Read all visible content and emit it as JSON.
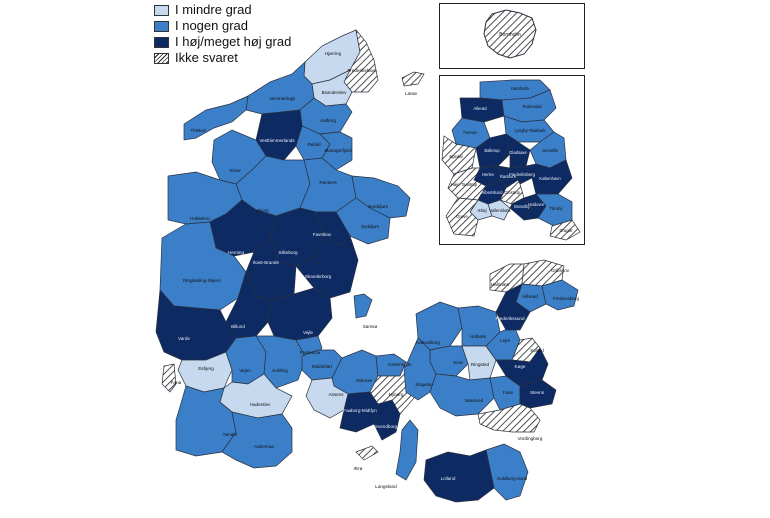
{
  "colors": {
    "light": "#c6d9ef",
    "medium": "#3b7fc8",
    "dark": "#0d2a63",
    "border": "#2a3140",
    "hatch": "#222222",
    "sea": "#ffffff"
  },
  "legend": {
    "items": [
      {
        "label": "I mindre grad",
        "category": "light"
      },
      {
        "label": "I nogen grad",
        "category": "medium"
      },
      {
        "label": "I høj/meget høj grad",
        "category": "dark"
      },
      {
        "label": "Ikke svaret",
        "category": "hatch"
      }
    ]
  },
  "regions": {
    "hjorring": {
      "label": "Hjørring",
      "category": "light"
    },
    "frederikshavn": {
      "label": "Frederikshavn",
      "category": "hatch"
    },
    "laeso": {
      "label": "Læsø",
      "category": "hatch"
    },
    "bronderslev": {
      "label": "Brønderslev",
      "category": "light"
    },
    "jammerbugt": {
      "label": "Jammerbugt",
      "category": "medium"
    },
    "aalborg": {
      "label": "Aalborg",
      "category": "medium"
    },
    "thisted": {
      "label": "Thisted",
      "category": "medium"
    },
    "vesthimmerland": {
      "label": "Vesthimmerlands",
      "category": "dark"
    },
    "rebild": {
      "label": "Rebild",
      "category": "medium"
    },
    "mariagerfjord": {
      "label": "Mariagerfjord",
      "category": "medium"
    },
    "skive": {
      "label": "Skive",
      "category": "medium"
    },
    "viborg": {
      "label": "Viborg",
      "category": "medium"
    },
    "randers": {
      "label": "Randers",
      "category": "medium"
    },
    "norddjurs": {
      "label": "Norddjurs",
      "category": "medium"
    },
    "syddjurs": {
      "label": "Syddjurs",
      "category": "medium"
    },
    "holstebro": {
      "label": "Holstebro",
      "category": "medium"
    },
    "herning": {
      "label": "Herning",
      "category": "dark"
    },
    "silkeborg": {
      "label": "Silkeborg",
      "category": "dark"
    },
    "favrskov": {
      "label": "Favrskov",
      "category": "dark"
    },
    "ikast": {
      "label": "Ikast-Brande",
      "category": "dark"
    },
    "skanderborg": {
      "label": "Skanderborg",
      "category": "dark"
    },
    "ringkobing": {
      "label": "Ringkøbing-Skjern",
      "category": "medium"
    },
    "billund": {
      "label": "Billund",
      "category": "dark"
    },
    "vejle": {
      "label": "Vejle",
      "category": "dark"
    },
    "varde": {
      "label": "Varde",
      "category": "dark"
    },
    "esbjerg": {
      "label": "Esbjerg",
      "category": "light"
    },
    "fano": {
      "label": "Fanø",
      "category": "hatch"
    },
    "vejen": {
      "label": "Vejen",
      "category": "medium"
    },
    "kolding": {
      "label": "Kolding",
      "category": "medium"
    },
    "fredericia": {
      "label": "Fredericia",
      "category": "medium"
    },
    "haderslev": {
      "label": "Haderslev",
      "category": "light"
    },
    "tonder": {
      "label": "Tønder",
      "category": "medium"
    },
    "aabenraa": {
      "label": "Aabenraa",
      "category": "medium"
    },
    "samso": {
      "label": "Samsø",
      "category": "medium"
    },
    "middelfart": {
      "label": "Middelfart",
      "category": "medium"
    },
    "odense": {
      "label": "Odense",
      "category": "medium"
    },
    "assens": {
      "label": "Assens",
      "category": "light"
    },
    "kerteminde": {
      "label": "Kerteminde",
      "category": "medium"
    },
    "faaborg": {
      "label": "Faaborg-Midtfyn",
      "category": "dark"
    },
    "svendborg": {
      "label": "Svendborg",
      "category": "dark"
    },
    "nyborg": {
      "label": "Nyborg",
      "category": "hatch"
    },
    "aero": {
      "label": "Ærø",
      "category": "hatch"
    },
    "langeland": {
      "label": "Langeland",
      "category": "medium"
    },
    "kalundborg": {
      "label": "Kalundborg",
      "category": "medium"
    },
    "holbaek": {
      "label": "Holbæk",
      "category": "medium"
    },
    "sorø": {
      "label": "Sorø",
      "category": "medium"
    },
    "ringsted": {
      "label": "Ringsted",
      "category": "light"
    },
    "slagelse": {
      "label": "Slagelse",
      "category": "medium"
    },
    "naestved": {
      "label": "Næstved",
      "category": "medium"
    },
    "faxe": {
      "label": "Faxe",
      "category": "medium"
    },
    "lejre": {
      "label": "Lejre",
      "category": "medium"
    },
    "solrod": {
      "label": "Solrød",
      "category": "hatch"
    },
    "koge": {
      "label": "Køge",
      "category": "dark"
    },
    "stevns": {
      "label": "Stevns",
      "category": "dark"
    },
    "vordingborg": {
      "label": "Vordingborg",
      "category": "hatch"
    },
    "guldborgsund": {
      "label": "Guldborg-sund",
      "category": "medium"
    },
    "lolland": {
      "label": "Lolland",
      "category": "dark"
    },
    "halsnaes": {
      "label": "Halsnæs",
      "category": "hatch"
    },
    "gribskov": {
      "label": "Gribskov",
      "category": "hatch"
    },
    "hillerod": {
      "label": "Hillerød",
      "category": "medium"
    },
    "fredensborg": {
      "label": "Fredensborg",
      "category": "medium"
    },
    "frederikssund": {
      "label": "Frederikssund",
      "category": "dark"
    },
    "bornholm": {
      "label": "Bornholm",
      "category": "hatch"
    }
  },
  "inset_capital": {
    "regions": [
      {
        "label": "Hørsholm",
        "category": "medium"
      },
      {
        "label": "Allerød",
        "category": "dark"
      },
      {
        "label": "Rudersdal",
        "category": "medium"
      },
      {
        "label": "Furesø",
        "category": "medium"
      },
      {
        "label": "Lyngby-Taarbæk",
        "category": "medium"
      },
      {
        "label": "Egedal",
        "category": "hatch"
      },
      {
        "label": "Ballerup",
        "category": "dark"
      },
      {
        "label": "Gladsaxe",
        "category": "dark"
      },
      {
        "label": "Gentofte",
        "category": "medium"
      },
      {
        "label": "Herlev",
        "category": "dark"
      },
      {
        "label": "Rødovre",
        "category": "dark"
      },
      {
        "label": "Frederiksberg",
        "category": "dark"
      },
      {
        "label": "København",
        "category": "dark"
      },
      {
        "label": "Høje-Taastrup",
        "category": "hatch"
      },
      {
        "label": "Albertslund",
        "category": "dark"
      },
      {
        "label": "Glostrup",
        "category": "hatch"
      },
      {
        "label": "Ishøj",
        "category": "light"
      },
      {
        "label": "Vallensbæk",
        "category": "light"
      },
      {
        "label": "Brøndby",
        "category": "dark"
      },
      {
        "label": "Hvidovre",
        "category": "dark"
      },
      {
        "label": "Greve",
        "category": "hatch"
      },
      {
        "label": "Tårnby",
        "category": "medium"
      },
      {
        "label": "Dragør",
        "category": "hatch"
      }
    ]
  },
  "inset_bornholm": {
    "label": "Bornholm",
    "category": "hatch"
  }
}
